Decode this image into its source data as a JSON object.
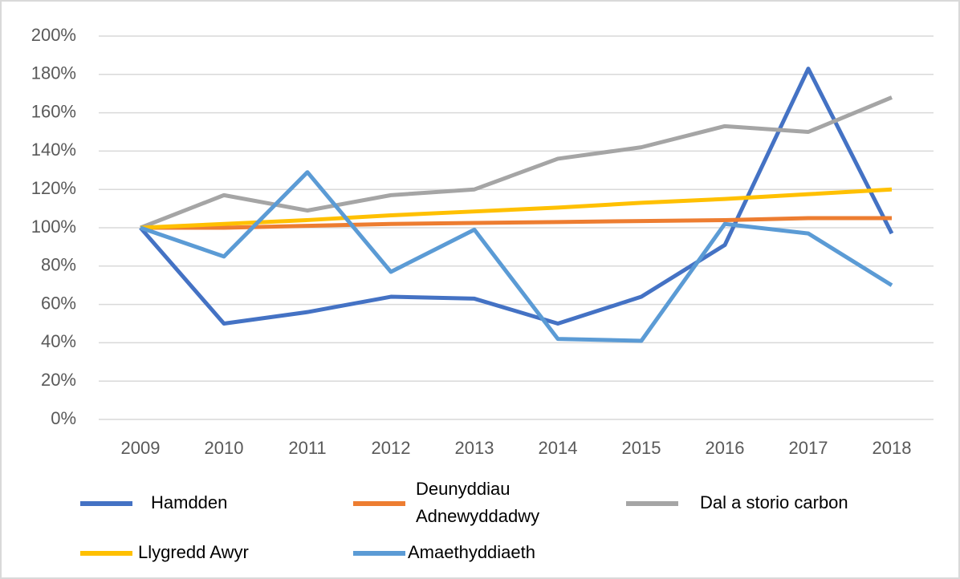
{
  "chart_data": {
    "type": "line",
    "categories": [
      "2009",
      "2010",
      "2011",
      "2012",
      "2013",
      "2014",
      "2015",
      "2016",
      "2017",
      "2018"
    ],
    "series": [
      {
        "name": "Hamdden",
        "color": "#4472c4",
        "values": [
          100,
          50,
          56,
          64,
          63,
          50,
          64,
          91,
          183,
          97
        ]
      },
      {
        "name": "Deunyddiau Adnewyddadwy",
        "color": "#ed7d31",
        "values": [
          100,
          100,
          101,
          102,
          102.5,
          103,
          103.5,
          104,
          105,
          105
        ]
      },
      {
        "name": "Dal a storio carbon",
        "color": "#a5a5a5",
        "values": [
          100,
          117,
          109,
          117,
          120,
          136,
          142,
          153,
          150,
          168
        ]
      },
      {
        "name": "Llygredd Awyr",
        "color": "#ffc000",
        "values": [
          100,
          102,
          104,
          106.5,
          108.5,
          110.5,
          113,
          115,
          117.5,
          120
        ]
      },
      {
        "name": "Amaethyddiaeth",
        "color": "#5b9bd5",
        "values": [
          100,
          85,
          129,
          77,
          99,
          42,
          41,
          102,
          97,
          70
        ]
      }
    ],
    "ylim": [
      0,
      200
    ],
    "yticks": [
      {
        "value": 0,
        "label": "0%"
      },
      {
        "value": 20,
        "label": "20%"
      },
      {
        "value": 40,
        "label": "40%"
      },
      {
        "value": 60,
        "label": "60%"
      },
      {
        "value": 80,
        "label": "80%"
      },
      {
        "value": 100,
        "label": "100%"
      },
      {
        "value": 120,
        "label": "120%"
      },
      {
        "value": 140,
        "label": "140%"
      },
      {
        "value": 160,
        "label": "160%"
      },
      {
        "value": 180,
        "label": "180%"
      },
      {
        "value": 200,
        "label": "200%"
      }
    ],
    "grid": true,
    "legend": "bottom"
  }
}
